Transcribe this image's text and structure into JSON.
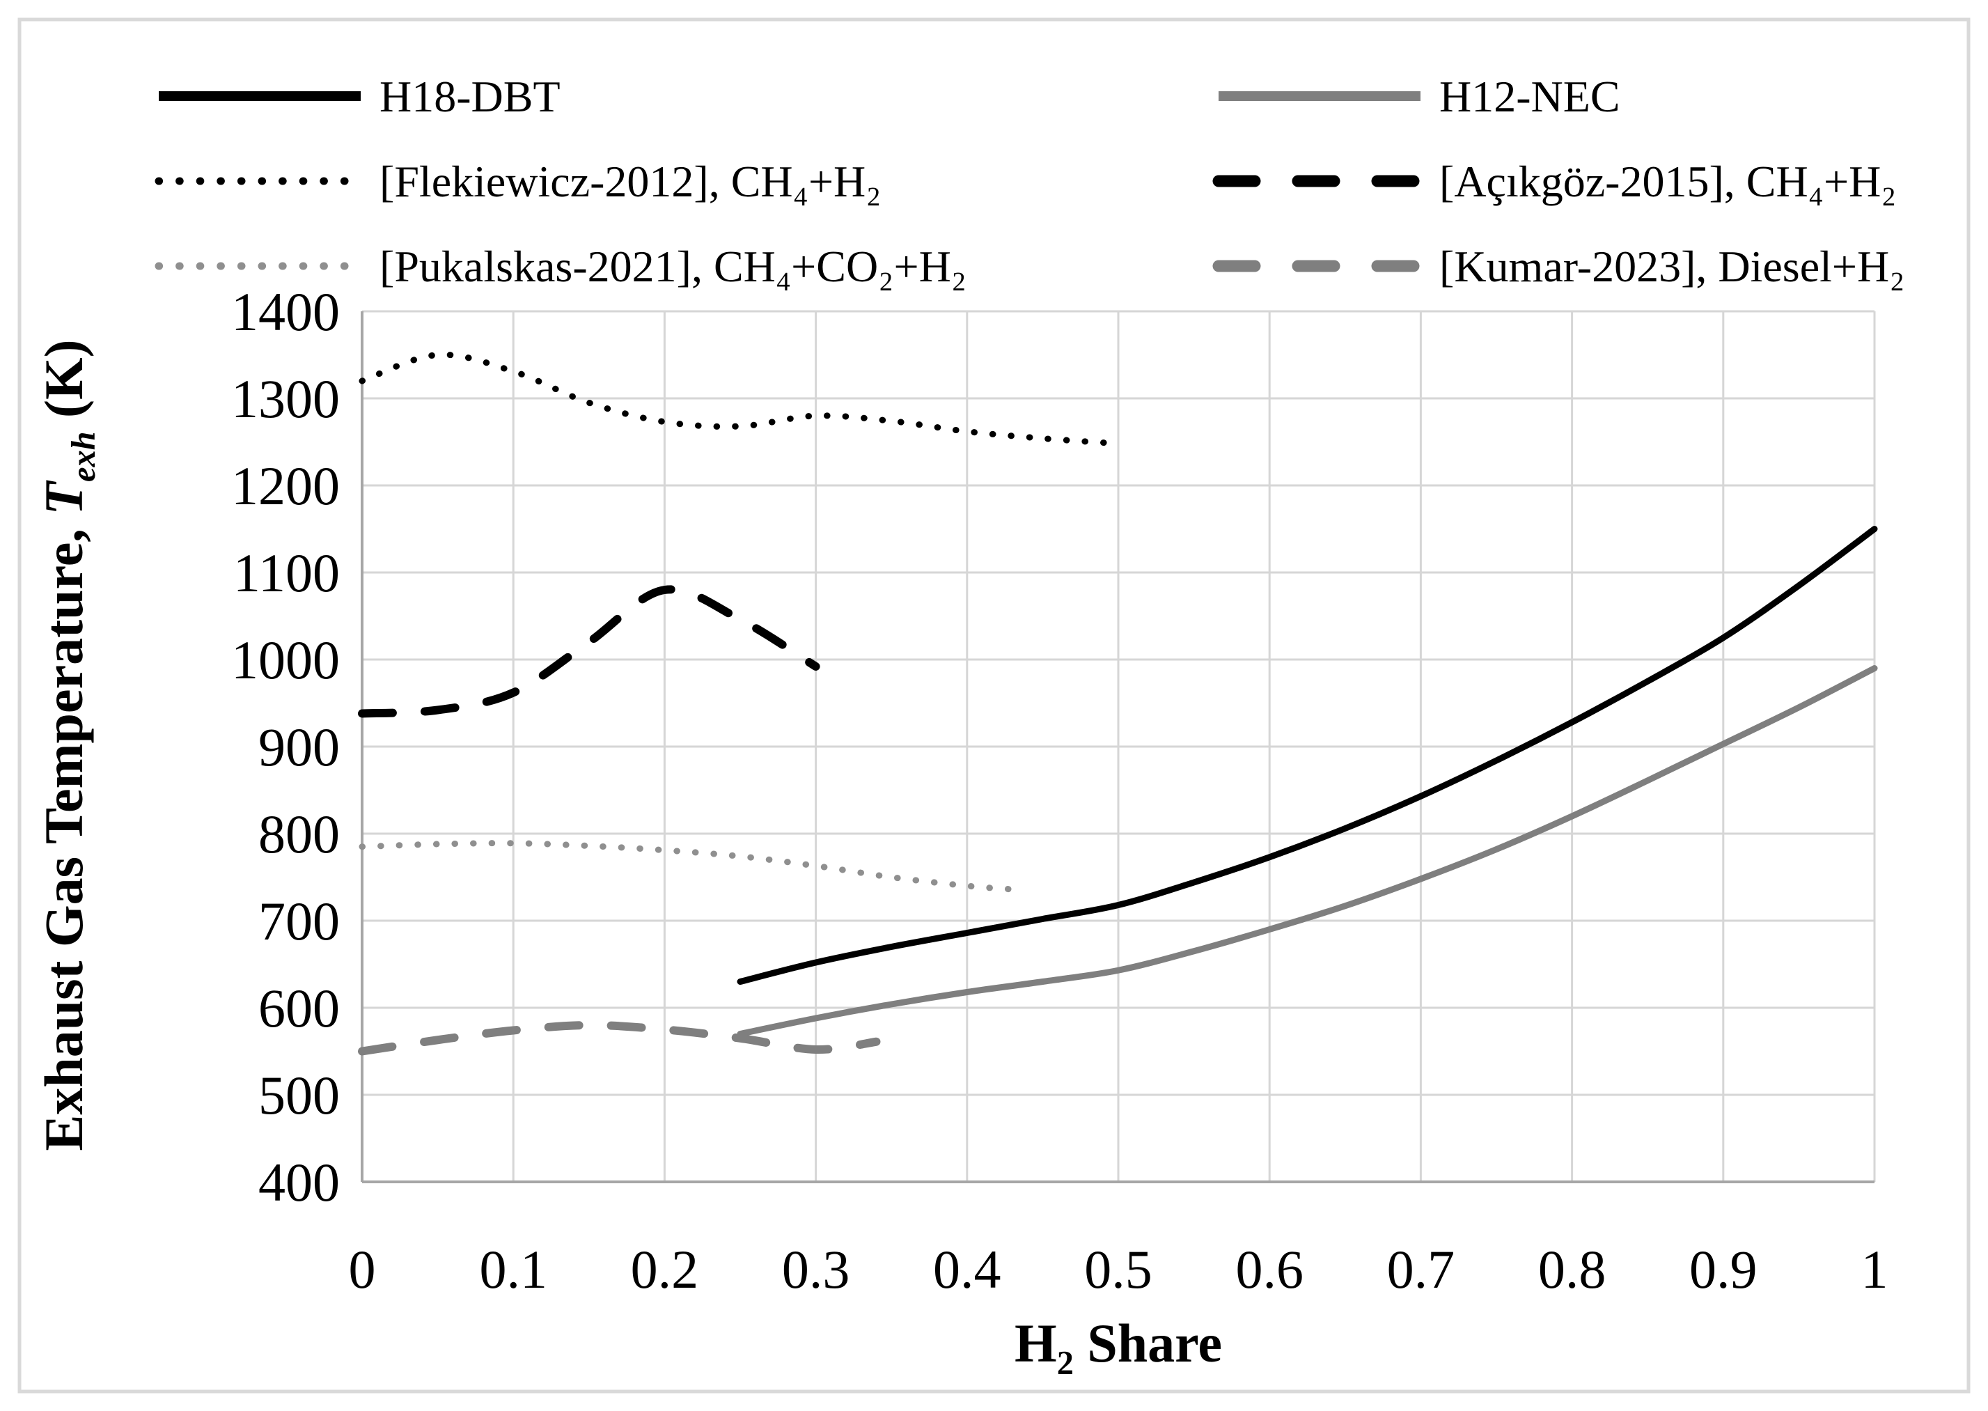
{
  "chart_data": {
    "type": "line",
    "title": "",
    "xlabel": "H2 Share",
    "ylabel": "Exhaust Gas Temperature, Texh (K)",
    "xlabel_parts": {
      "prefix": "H",
      "subscript": "2",
      "suffix": " Share"
    },
    "ylabel_parts": {
      "prefix": "Exhaust Gas Temperature, ",
      "symbol": "T",
      "subscript": "exh",
      "suffix": " (K)"
    },
    "xlim": [
      0,
      1
    ],
    "ylim": [
      400,
      1400
    ],
    "x_ticks": [
      0,
      0.1,
      0.2,
      0.3,
      0.4,
      0.5,
      0.6,
      0.7,
      0.8,
      0.9,
      1
    ],
    "x_tick_labels": [
      "0",
      "0.1",
      "0.2",
      "0.3",
      "0.4",
      "0.5",
      "0.6",
      "0.7",
      "0.8",
      "0.9",
      "1"
    ],
    "y_ticks": [
      400,
      500,
      600,
      700,
      800,
      900,
      1000,
      1100,
      1200,
      1300,
      1400
    ],
    "y_tick_labels": [
      "400",
      "500",
      "600",
      "700",
      "800",
      "900",
      "1000",
      "1100",
      "1200",
      "1300",
      "1400"
    ],
    "grid": true,
    "legend_position": "top",
    "colors": {
      "black_series": "#000000",
      "gray_series": "#7f7f7f",
      "light_gray_series": "#8f8f8f",
      "gridline": "#d6d6d6",
      "axis_line": "#a6a6a6"
    },
    "series": [
      {
        "name": "H18-DBT",
        "color": "#000000",
        "line_style": "solid",
        "x": [
          0.25,
          0.3,
          0.35,
          0.4,
          0.45,
          0.5,
          0.55,
          0.6,
          0.65,
          0.7,
          0.75,
          0.8,
          0.85,
          0.9,
          0.95,
          1.0
        ],
        "y": [
          630,
          652,
          670,
          686,
          702,
          718,
          744,
          773,
          806,
          843,
          884,
          928,
          975,
          1025,
          1085,
          1150
        ]
      },
      {
        "name": "H12-NEC",
        "color": "#7f7f7f",
        "line_style": "solid",
        "x": [
          0.25,
          0.3,
          0.35,
          0.4,
          0.45,
          0.5,
          0.55,
          0.6,
          0.65,
          0.7,
          0.75,
          0.8,
          0.85,
          0.9,
          0.95,
          1.0
        ],
        "y": [
          570,
          588,
          604,
          618,
          630,
          643,
          665,
          690,
          717,
          748,
          782,
          820,
          861,
          903,
          945,
          990
        ]
      },
      {
        "name": "[Flekiewicz-2012], CH₄+H₂",
        "color": "#000000",
        "line_style": "dotted",
        "x": [
          0,
          0.05,
          0.1,
          0.15,
          0.2,
          0.25,
          0.3,
          0.35,
          0.4,
          0.45,
          0.5
        ],
        "y": [
          1320,
          1350,
          1331,
          1295,
          1273,
          1268,
          1280,
          1274,
          1262,
          1254,
          1248
        ]
      },
      {
        "name": "[Açıkgöz-2015], CH₄+H₂",
        "color": "#000000",
        "line_style": "dashed",
        "x": [
          0,
          0.05,
          0.1,
          0.15,
          0.2,
          0.25,
          0.3
        ],
        "y": [
          938,
          942,
          962,
          1020,
          1080,
          1046,
          992
        ]
      },
      {
        "name": "[Pukalskas-2021], CH₄+CO₂+H₂",
        "color": "#8f8f8f",
        "line_style": "dotted",
        "x": [
          0,
          0.05,
          0.1,
          0.15,
          0.2,
          0.25,
          0.3,
          0.35,
          0.4,
          0.43
        ],
        "y": [
          785,
          788,
          789,
          786,
          781,
          774,
          763,
          750,
          740,
          736
        ]
      },
      {
        "name": "[Kumar-2023], Diesel+H₂",
        "color": "#7f7f7f",
        "line_style": "dashed",
        "x": [
          0,
          0.05,
          0.1,
          0.15,
          0.2,
          0.25,
          0.3,
          0.34
        ],
        "y": [
          550,
          563,
          574,
          580,
          575,
          565,
          552,
          561
        ]
      }
    ]
  }
}
